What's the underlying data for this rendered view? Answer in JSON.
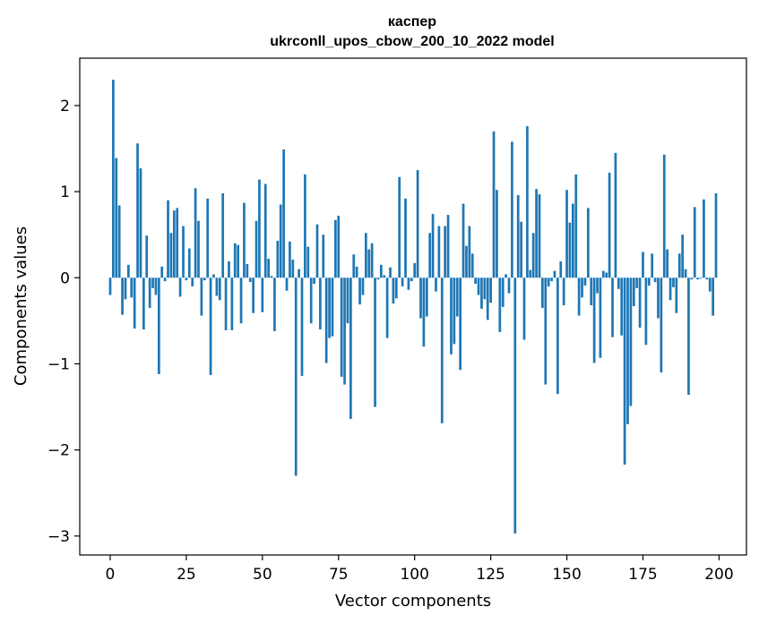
{
  "chart_data": {
    "type": "bar",
    "title": "каспер",
    "subtitle": "ukrconll_upos_cbow_200_10_2022 model",
    "xlabel": "Vector components",
    "ylabel": "Components values",
    "xlim": [
      -10,
      209
    ],
    "ylim": [
      -3.22,
      2.55
    ],
    "xticks": [
      0,
      25,
      50,
      75,
      100,
      125,
      150,
      175,
      200
    ],
    "yticks": [
      -3,
      -2,
      -1,
      0,
      1,
      2
    ],
    "xtick_labels": [
      "0",
      "25",
      "50",
      "75",
      "100",
      "125",
      "150",
      "175",
      "200"
    ],
    "ytick_labels": [
      "−3",
      "−2",
      "−1",
      "0",
      "1",
      "2"
    ],
    "bar_color": "#1f77b4",
    "grid": false,
    "legend": "none",
    "x": [
      0,
      1,
      2,
      3,
      4,
      5,
      6,
      7,
      8,
      9,
      10,
      11,
      12,
      13,
      14,
      15,
      16,
      17,
      18,
      19,
      20,
      21,
      22,
      23,
      24,
      25,
      26,
      27,
      28,
      29,
      30,
      31,
      32,
      33,
      34,
      35,
      36,
      37,
      38,
      39,
      40,
      41,
      42,
      43,
      44,
      45,
      46,
      47,
      48,
      49,
      50,
      51,
      52,
      53,
      54,
      55,
      56,
      57,
      58,
      59,
      60,
      61,
      62,
      63,
      64,
      65,
      66,
      67,
      68,
      69,
      70,
      71,
      72,
      73,
      74,
      75,
      76,
      77,
      78,
      79,
      80,
      81,
      82,
      83,
      84,
      85,
      86,
      87,
      88,
      89,
      90,
      91,
      92,
      93,
      94,
      95,
      96,
      97,
      98,
      99,
      100,
      101,
      102,
      103,
      104,
      105,
      106,
      107,
      108,
      109,
      110,
      111,
      112,
      113,
      114,
      115,
      116,
      117,
      118,
      119,
      120,
      121,
      122,
      123,
      124,
      125,
      126,
      127,
      128,
      129,
      130,
      131,
      132,
      133,
      134,
      135,
      136,
      137,
      138,
      139,
      140,
      141,
      142,
      143,
      144,
      145,
      146,
      147,
      148,
      149,
      150,
      151,
      152,
      153,
      154,
      155,
      156,
      157,
      158,
      159,
      160,
      161,
      162,
      163,
      164,
      165,
      166,
      167,
      168,
      169,
      170,
      171,
      172,
      173,
      174,
      175,
      176,
      177,
      178,
      179,
      180,
      181,
      182,
      183,
      184,
      185,
      186,
      187,
      188,
      189,
      190,
      191,
      192,
      193,
      194,
      195,
      196,
      197,
      198,
      199
    ],
    "values": [
      -0.2,
      2.3,
      1.39,
      0.84,
      -0.43,
      -0.25,
      0.15,
      -0.23,
      -0.59,
      1.56,
      1.27,
      -0.6,
      0.49,
      -0.35,
      -0.12,
      -0.2,
      -1.12,
      0.13,
      -0.04,
      0.9,
      0.52,
      0.78,
      0.81,
      -0.22,
      0.6,
      -0.03,
      0.34,
      -0.1,
      1.04,
      0.66,
      -0.44,
      -0.03,
      0.92,
      -1.13,
      0.04,
      -0.21,
      -0.26,
      0.98,
      -0.61,
      0.19,
      -0.61,
      0.4,
      0.38,
      -0.53,
      0.87,
      0.16,
      -0.05,
      -0.41,
      0.66,
      1.14,
      -0.4,
      1.09,
      0.22,
      0.02,
      -0.62,
      0.43,
      0.85,
      1.49,
      -0.15,
      0.42,
      0.21,
      -2.3,
      0.1,
      -1.14,
      1.2,
      0.36,
      -0.53,
      -0.07,
      0.62,
      -0.6,
      0.5,
      -0.99,
      -0.7,
      -0.68,
      0.67,
      0.72,
      -1.15,
      -1.24,
      -0.53,
      -1.64,
      0.27,
      0.13,
      -0.31,
      -0.2,
      0.52,
      0.33,
      0.4,
      -1.5,
      -0.02,
      0.15,
      0.03,
      -0.7,
      0.12,
      -0.3,
      -0.24,
      1.17,
      -0.1,
      0.92,
      -0.14,
      -0.04,
      0.17,
      1.25,
      -0.47,
      -0.8,
      -0.45,
      0.52,
      0.74,
      -0.16,
      0.6,
      -1.69,
      0.6,
      0.73,
      -0.89,
      -0.77,
      -0.45,
      -1.07,
      0.86,
      0.37,
      0.6,
      0.28,
      -0.07,
      -0.2,
      -0.36,
      -0.25,
      -0.49,
      -0.29,
      1.7,
      1.02,
      -0.63,
      -0.34,
      0.04,
      -0.18,
      1.58,
      -2.97,
      0.96,
      0.65,
      -0.72,
      1.76,
      0.09,
      0.52,
      1.03,
      0.97,
      -0.35,
      -1.24,
      -0.1,
      -0.04,
      0.08,
      -1.35,
      0.19,
      -0.32,
      1.02,
      0.64,
      0.86,
      1.2,
      -0.44,
      -0.23,
      -0.09,
      0.81,
      -0.32,
      -0.99,
      -0.18,
      -0.93,
      0.08,
      0.06,
      1.22,
      -0.69,
      1.45,
      -0.13,
      -0.67,
      -2.17,
      -1.7,
      -1.49,
      -0.33,
      -0.12,
      -0.58,
      0.3,
      -0.78,
      -0.09,
      0.28,
      -0.05,
      -0.47,
      -1.1,
      1.43,
      0.33,
      -0.26,
      -0.11,
      -0.41,
      0.28,
      0.5,
      0.1,
      -1.36,
      -0.02,
      0.82,
      -0.02,
      -0.01,
      0.91,
      -0.02,
      -0.16,
      -0.44,
      0.98
    ]
  }
}
